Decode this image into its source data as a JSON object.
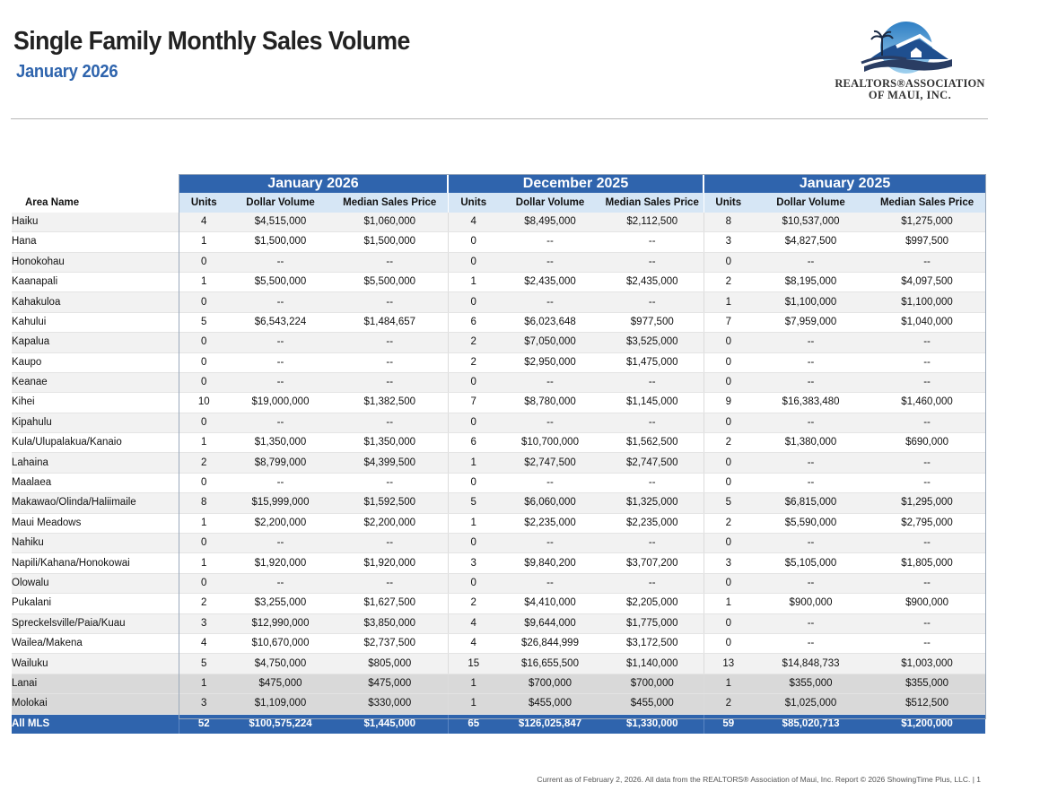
{
  "header": {
    "title": "Single Family Monthly Sales Volume",
    "subtitle": "January 2026"
  },
  "logo": {
    "line1": "REALTORS®ASSOCIATION",
    "line2": "OF MAUI, INC."
  },
  "table": {
    "area_header": "Area Name",
    "groups": [
      "January 2026",
      "December 2025",
      "January 2025"
    ],
    "columns": [
      "Units",
      "Dollar Volume",
      "Median Sales Price"
    ],
    "rows": [
      [
        "Haiku",
        "4",
        "$4,515,000",
        "$1,060,000",
        "4",
        "$8,495,000",
        "$2,112,500",
        "8",
        "$10,537,000",
        "$1,275,000"
      ],
      [
        "Hana",
        "1",
        "$1,500,000",
        "$1,500,000",
        "0",
        "--",
        "--",
        "3",
        "$4,827,500",
        "$997,500"
      ],
      [
        "Honokohau",
        "0",
        "--",
        "--",
        "0",
        "--",
        "--",
        "0",
        "--",
        "--"
      ],
      [
        "Kaanapali",
        "1",
        "$5,500,000",
        "$5,500,000",
        "1",
        "$2,435,000",
        "$2,435,000",
        "2",
        "$8,195,000",
        "$4,097,500"
      ],
      [
        "Kahakuloa",
        "0",
        "--",
        "--",
        "0",
        "--",
        "--",
        "1",
        "$1,100,000",
        "$1,100,000"
      ],
      [
        "Kahului",
        "5",
        "$6,543,224",
        "$1,484,657",
        "6",
        "$6,023,648",
        "$977,500",
        "7",
        "$7,959,000",
        "$1,040,000"
      ],
      [
        "Kapalua",
        "0",
        "--",
        "--",
        "2",
        "$7,050,000",
        "$3,525,000",
        "0",
        "--",
        "--"
      ],
      [
        "Kaupo",
        "0",
        "--",
        "--",
        "2",
        "$2,950,000",
        "$1,475,000",
        "0",
        "--",
        "--"
      ],
      [
        "Keanae",
        "0",
        "--",
        "--",
        "0",
        "--",
        "--",
        "0",
        "--",
        "--"
      ],
      [
        "Kihei",
        "10",
        "$19,000,000",
        "$1,382,500",
        "7",
        "$8,780,000",
        "$1,145,000",
        "9",
        "$16,383,480",
        "$1,460,000"
      ],
      [
        "Kipahulu",
        "0",
        "--",
        "--",
        "0",
        "--",
        "--",
        "0",
        "--",
        "--"
      ],
      [
        "Kula/Ulupalakua/Kanaio",
        "1",
        "$1,350,000",
        "$1,350,000",
        "6",
        "$10,700,000",
        "$1,562,500",
        "2",
        "$1,380,000",
        "$690,000"
      ],
      [
        "Lahaina",
        "2",
        "$8,799,000",
        "$4,399,500",
        "1",
        "$2,747,500",
        "$2,747,500",
        "0",
        "--",
        "--"
      ],
      [
        "Maalaea",
        "0",
        "--",
        "--",
        "0",
        "--",
        "--",
        "0",
        "--",
        "--"
      ],
      [
        "Makawao/Olinda/Haliimaile",
        "8",
        "$15,999,000",
        "$1,592,500",
        "5",
        "$6,060,000",
        "$1,325,000",
        "5",
        "$6,815,000",
        "$1,295,000"
      ],
      [
        "Maui Meadows",
        "1",
        "$2,200,000",
        "$2,200,000",
        "1",
        "$2,235,000",
        "$2,235,000",
        "2",
        "$5,590,000",
        "$2,795,000"
      ],
      [
        "Nahiku",
        "0",
        "--",
        "--",
        "0",
        "--",
        "--",
        "0",
        "--",
        "--"
      ],
      [
        "Napili/Kahana/Honokowai",
        "1",
        "$1,920,000",
        "$1,920,000",
        "3",
        "$9,840,200",
        "$3,707,200",
        "3",
        "$5,105,000",
        "$1,805,000"
      ],
      [
        "Olowalu",
        "0",
        "--",
        "--",
        "0",
        "--",
        "--",
        "0",
        "--",
        "--"
      ],
      [
        "Pukalani",
        "2",
        "$3,255,000",
        "$1,627,500",
        "2",
        "$4,410,000",
        "$2,205,000",
        "1",
        "$900,000",
        "$900,000"
      ],
      [
        "Spreckelsville/Paia/Kuau",
        "3",
        "$12,990,000",
        "$3,850,000",
        "4",
        "$9,644,000",
        "$1,775,000",
        "0",
        "--",
        "--"
      ],
      [
        "Wailea/Makena",
        "4",
        "$10,670,000",
        "$2,737,500",
        "4",
        "$26,844,999",
        "$3,172,500",
        "0",
        "--",
        "--"
      ],
      [
        "Wailuku",
        "5",
        "$4,750,000",
        "$805,000",
        "15",
        "$16,655,500",
        "$1,140,000",
        "13",
        "$14,848,733",
        "$1,003,000"
      ]
    ],
    "island_rows": [
      [
        "Lanai",
        "1",
        "$475,000",
        "$475,000",
        "1",
        "$700,000",
        "$700,000",
        "1",
        "$355,000",
        "$355,000"
      ],
      [
        "Molokai",
        "3",
        "$1,109,000",
        "$330,000",
        "1",
        "$455,000",
        "$455,000",
        "2",
        "$1,025,000",
        "$512,500"
      ]
    ],
    "total_row": [
      "All MLS",
      "52",
      "$100,575,224",
      "$1,445,000",
      "65",
      "$126,025,847",
      "$1,330,000",
      "59",
      "$85,020,713",
      "$1,200,000"
    ]
  },
  "footer": "Current as of February 2, 2026. All data from the REALTORS® Association of Maui, Inc. Report © 2026 ShowingTime Plus, LLC.  |  1"
}
